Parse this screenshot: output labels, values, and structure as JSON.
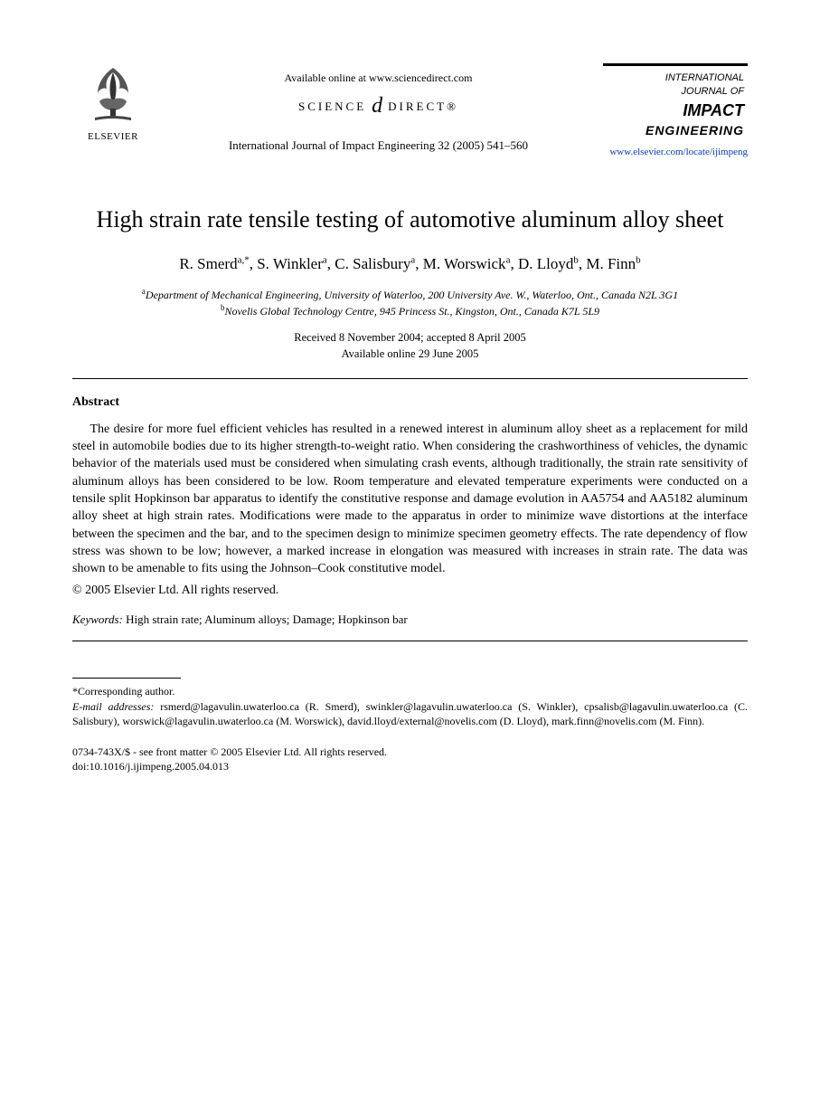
{
  "header": {
    "publisher_name": "ELSEVIER",
    "available_online": "Available online at www.sciencedirect.com",
    "sd_left": "SCIENCE",
    "sd_right": "DIRECT®",
    "citation": "International Journal of Impact Engineering 32 (2005) 541–560",
    "journal_box": {
      "line1": "INTERNATIONAL",
      "line2": "JOURNAL OF",
      "line3": "IMPACT",
      "line4": "ENGINEERING"
    },
    "journal_url": "www.elsevier.com/locate/ijimpeng"
  },
  "title": "High strain rate tensile testing of automotive aluminum alloy sheet",
  "authors_html": "R. Smerd<sup>a,*</sup>, S. Winkler<sup>a</sup>, C. Salisbury<sup>a</sup>, M. Worswick<sup>a</sup>, D. Lloyd<sup>b</sup>, M. Finn<sup>b</sup>",
  "affiliations": {
    "a": "Department of Mechanical Engineering, University of Waterloo, 200 University Ave. W., Waterloo, Ont., Canada N2L 3G1",
    "b": "Novelis Global Technology Centre, 945 Princess St., Kingston, Ont., Canada K7L 5L9"
  },
  "dates": {
    "received_accepted": "Received 8 November 2004; accepted 8 April 2005",
    "online": "Available online 29 June 2005"
  },
  "abstract": {
    "heading": "Abstract",
    "body": "The desire for more fuel efficient vehicles has resulted in a renewed interest in aluminum alloy sheet as a replacement for mild steel in automobile bodies due to its higher strength-to-weight ratio. When considering the crashworthiness of vehicles, the dynamic behavior of the materials used must be considered when simulating crash events, although traditionally, the strain rate sensitivity of aluminum alloys has been considered to be low. Room temperature and elevated temperature experiments were conducted on a tensile split Hopkinson bar apparatus to identify the constitutive response and damage evolution in AA5754 and AA5182 aluminum alloy sheet at high strain rates. Modifications were made to the apparatus in order to minimize wave distortions at the interface between the specimen and the bar, and to the specimen design to minimize specimen geometry effects. The rate dependency of flow stress was shown to be low; however, a marked increase in elongation was measured with increases in strain rate. The data was shown to be amenable to fits using the Johnson–Cook constitutive model.",
    "copyright": "© 2005 Elsevier Ltd. All rights reserved."
  },
  "keywords": {
    "label": "Keywords:",
    "text": "High strain rate; Aluminum alloys; Damage; Hopkinson bar"
  },
  "footnotes": {
    "corresponding": "*Corresponding author.",
    "email_label": "E-mail addresses:",
    "emails": "rsmerd@lagavulin.uwaterloo.ca (R. Smerd), swinkler@lagavulin.uwaterloo.ca (S. Winkler), cpsalisb@lagavulin.uwaterloo.ca (C. Salisbury), worswick@lagavulin.uwaterloo.ca (M. Worswick), david.lloyd/external@novelis.com (D. Lloyd), mark.finn@novelis.com (M. Finn)."
  },
  "pubinfo": {
    "line1": "0734-743X/$ - see front matter © 2005 Elsevier Ltd. All rights reserved.",
    "line2": "doi:10.1016/j.ijimpeng.2005.04.013"
  },
  "colors": {
    "text": "#000000",
    "link": "#0038c9",
    "background": "#ffffff"
  }
}
